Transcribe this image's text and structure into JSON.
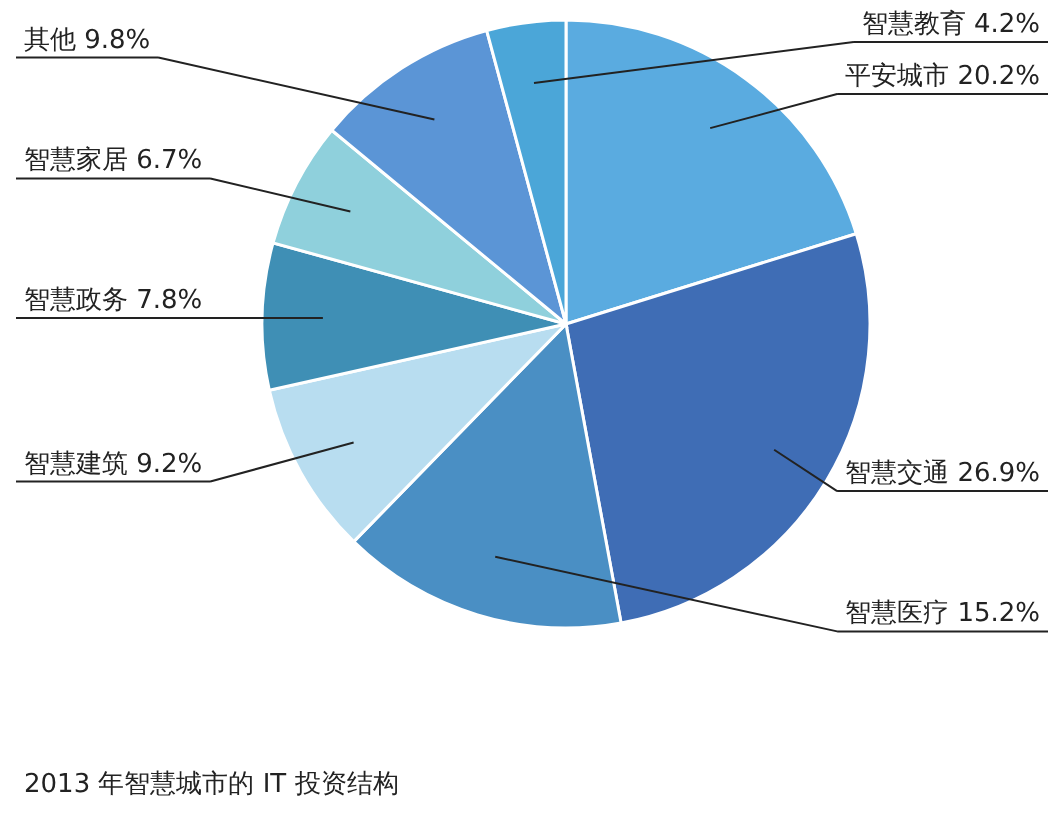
{
  "chart_data": {
    "type": "pie",
    "categories": [
      "平安城市",
      "智慧交通",
      "智慧医疗",
      "智慧建筑",
      "智慧政务",
      "智慧家居",
      "其他",
      "智慧教育"
    ],
    "values": [
      20.2,
      26.9,
      15.2,
      9.2,
      7.8,
      6.7,
      9.8,
      4.2
    ],
    "value_labels": [
      "20.2%",
      "26.9%",
      "15.2%",
      "9.2%",
      "7.8%",
      "6.7%",
      "9.8%",
      "4.2%"
    ],
    "colors": [
      "#5aabe0",
      "#3f6db5",
      "#4a8fc4",
      "#b8ddf0",
      "#3f8fb5",
      "#8fd0dc",
      "#5b95d6",
      "#4ba6d8"
    ],
    "annotations": [
      "2013 年智慧城市的 IT 投资结构"
    ]
  }
}
